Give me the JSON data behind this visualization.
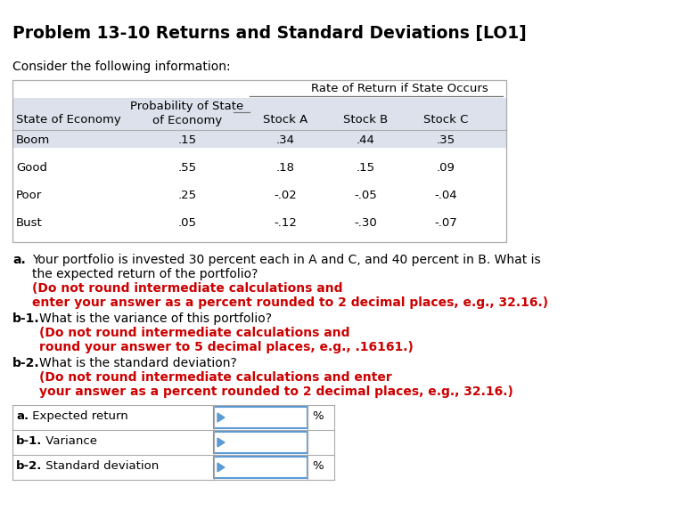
{
  "title": "Problem 13-10 Returns and Standard Deviations [LO1]",
  "subtitle": "Consider the following information:",
  "table_rows": [
    [
      "Boom",
      ".15",
      ".34",
      ".44",
      ".35"
    ],
    [
      "Good",
      ".55",
      ".18",
      ".15",
      ".09"
    ],
    [
      "Poor",
      ".25",
      "-.02",
      "-.05",
      "-.04"
    ],
    [
      "Bust",
      ".05",
      "-.12",
      "-.30",
      "-.07"
    ]
  ],
  "colors": {
    "title": "#000000",
    "body_text": "#000000",
    "bold_red": "#cc0000",
    "header_bg": "#dce1eb",
    "input_border": "#5b9bd5",
    "input_triangle": "#5b9bd5",
    "table_border": "#aaaaaa",
    "subtitle_color": "#000000"
  },
  "answer_rows": [
    {
      "label_bold": "a.",
      "label_normal": " Expected return",
      "has_pct": true
    },
    {
      "label_bold": "b-1.",
      "label_normal": " Variance",
      "has_pct": false
    },
    {
      "label_bold": "b-2.",
      "label_normal": " Standard deviation",
      "has_pct": true
    }
  ]
}
